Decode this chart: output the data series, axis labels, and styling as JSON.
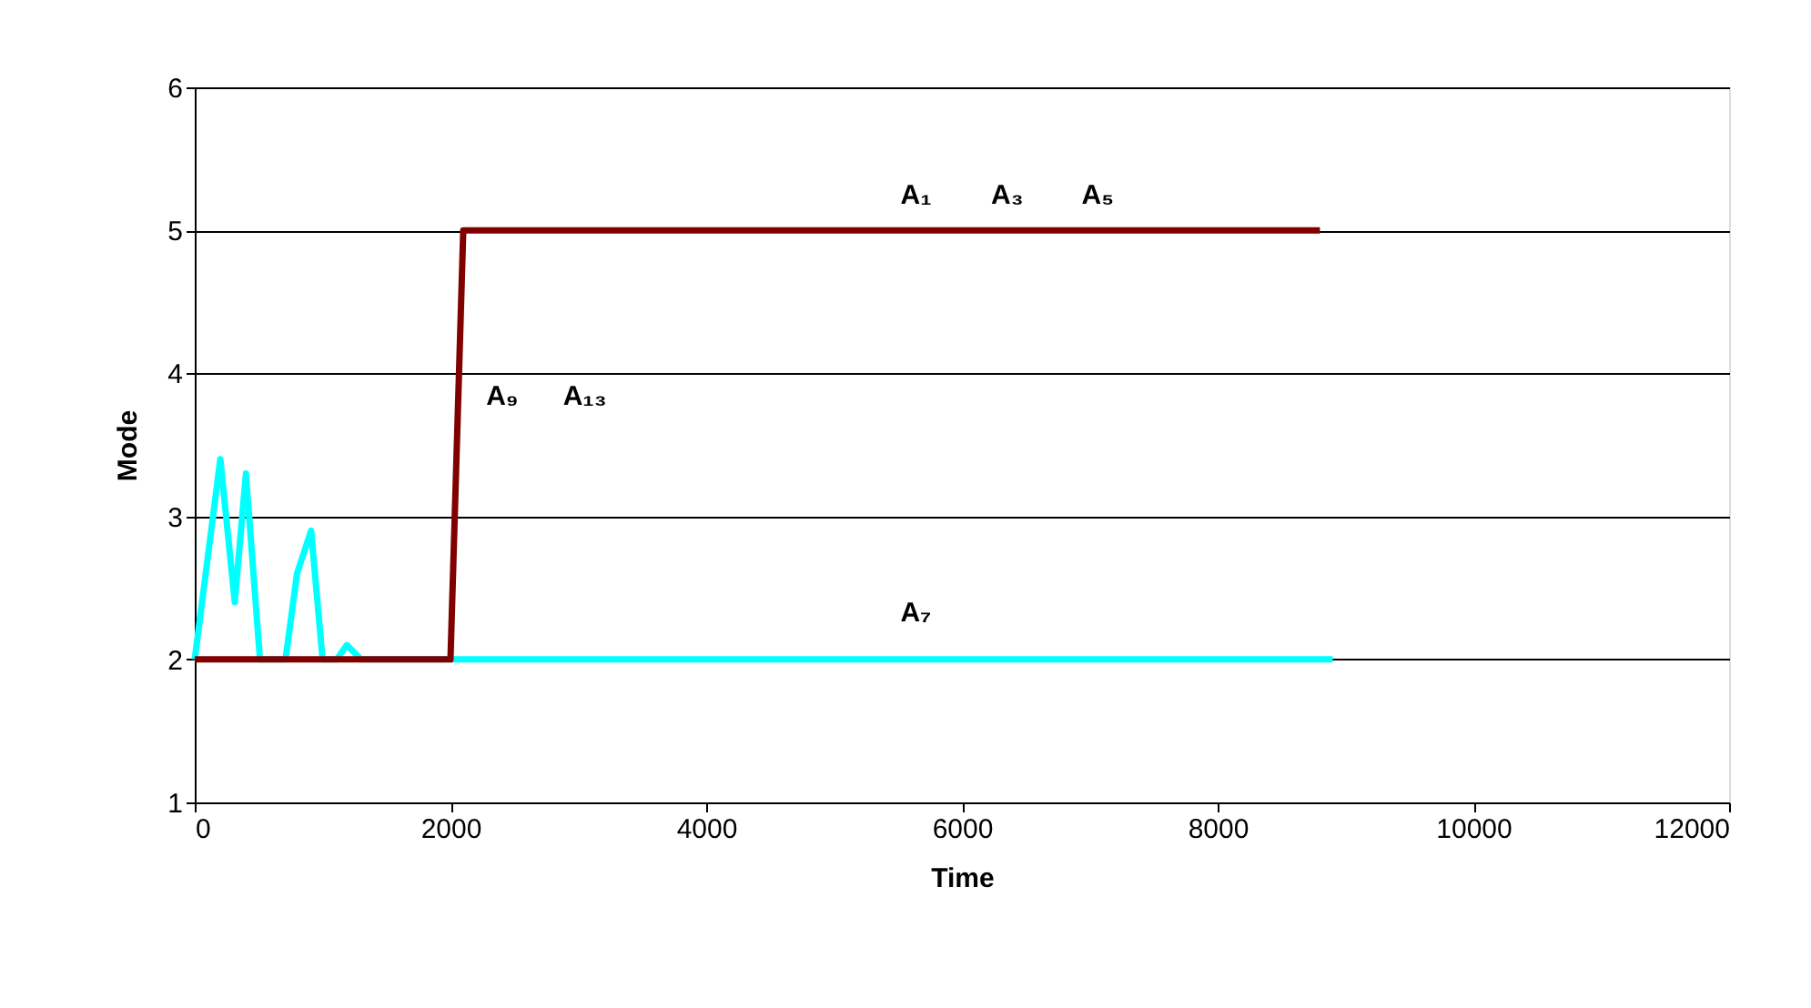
{
  "chart_data": {
    "type": "line",
    "xlabel": "Time",
    "ylabel": "Mode",
    "xlim": [
      0,
      12000
    ],
    "xticks": [
      0,
      2000,
      4000,
      6000,
      8000,
      10000,
      12000
    ],
    "ylim": [
      1,
      6
    ],
    "yticks": [
      1,
      2,
      3,
      4,
      5,
      6
    ],
    "grid": "y",
    "legend": false,
    "marker": "none",
    "line_style": "solid",
    "series": [
      {
        "color": "#00ffff",
        "x": [
          0,
          200,
          313,
          400,
          510,
          710,
          800,
          910,
          1000,
          1110,
          1190,
          1300,
          8900
        ],
        "values": [
          2,
          3.4,
          2.4,
          3.3,
          2,
          2,
          2.6,
          2.9,
          2,
          2,
          2.1,
          2,
          2
        ]
      },
      {
        "color": "#800000",
        "x": [
          0,
          2000,
          2100,
          8800
        ],
        "values": [
          2,
          2,
          5,
          5
        ]
      }
    ],
    "annotations": [
      "A₁",
      "A₃",
      "A₅",
      "A₉",
      "A₁₃",
      "A₇"
    ]
  }
}
